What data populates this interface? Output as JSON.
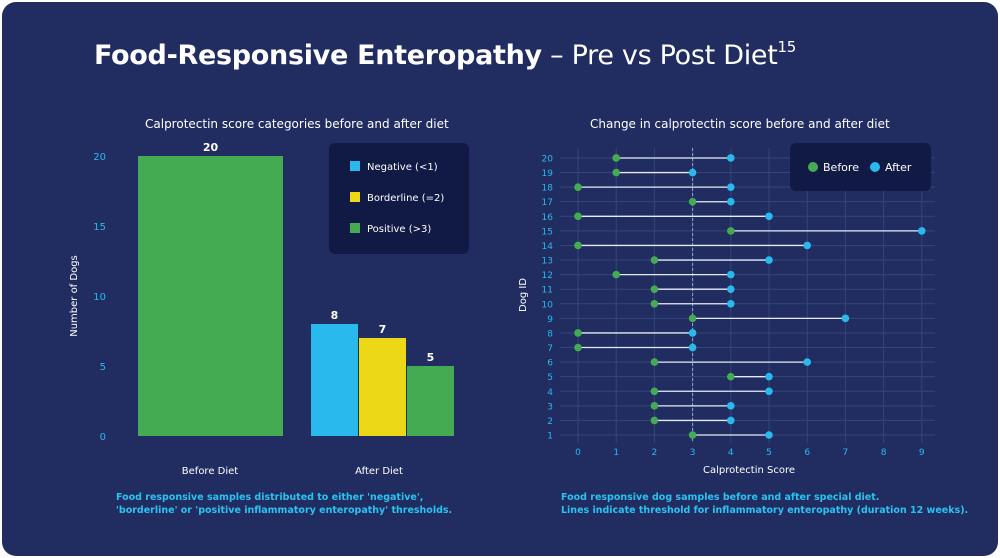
{
  "title": {
    "bold": "Food-Responsive Enteropathy",
    "rest": "– Pre vs Post Diet",
    "sup": "15"
  },
  "colors": {
    "background": "#212d61",
    "panel": "#111a45",
    "negative": "#29b9ec",
    "borderline": "#ecd817",
    "positive": "#45ab53",
    "before": "#45ab53",
    "after": "#29b9ec",
    "axis_text": "#29b9ec"
  },
  "chart_data": [
    {
      "type": "bar",
      "title": "Calprotectin score categories before and after diet",
      "xlabel": "",
      "ylabel": "Number of Dogs",
      "ylim": [
        0,
        20
      ],
      "yticks": [
        0,
        5,
        10,
        15,
        20
      ],
      "categories": [
        "Before Diet",
        "After Diet"
      ],
      "series": [
        {
          "name": "Negative (<1)",
          "values": [
            null,
            8
          ]
        },
        {
          "name": "Borderline (=2)",
          "values": [
            null,
            7
          ]
        },
        {
          "name": "Positive (>3)",
          "values": [
            20,
            5
          ]
        }
      ],
      "legend": "top-right",
      "caption": [
        "Food responsive samples distributed to either 'negative',",
        "'borderline' or 'positive inflammatory enteropathy' thresholds."
      ]
    },
    {
      "type": "scatter",
      "title": "Change in calprotectin score before and after diet",
      "xlabel": "Calprotectin Score",
      "ylabel": "Dog ID",
      "xlim": [
        0,
        9
      ],
      "xticks": [
        0,
        1,
        2,
        3,
        4,
        5,
        6,
        7,
        8,
        9
      ],
      "threshold": 3,
      "dogs": [
        1,
        2,
        3,
        4,
        5,
        6,
        7,
        8,
        9,
        10,
        11,
        12,
        13,
        14,
        15,
        16,
        17,
        18,
        19,
        20
      ],
      "series": [
        {
          "name": "Before",
          "values": [
            3,
            2,
            2,
            2,
            4,
            2,
            0,
            0,
            3,
            2,
            2,
            1,
            2,
            0,
            4,
            0,
            3,
            0,
            1,
            1
          ]
        },
        {
          "name": "After",
          "values": [
            5,
            4,
            4,
            5,
            5,
            6,
            3,
            3,
            7,
            4,
            4,
            4,
            5,
            6,
            9,
            5,
            4,
            4,
            3,
            4
          ]
        }
      ],
      "legend": "top-right",
      "caption": [
        "Food responsive dog samples before and after special diet.",
        "Lines indicate threshold for inflammatory enteropathy (duration 12 weeks)."
      ]
    }
  ]
}
